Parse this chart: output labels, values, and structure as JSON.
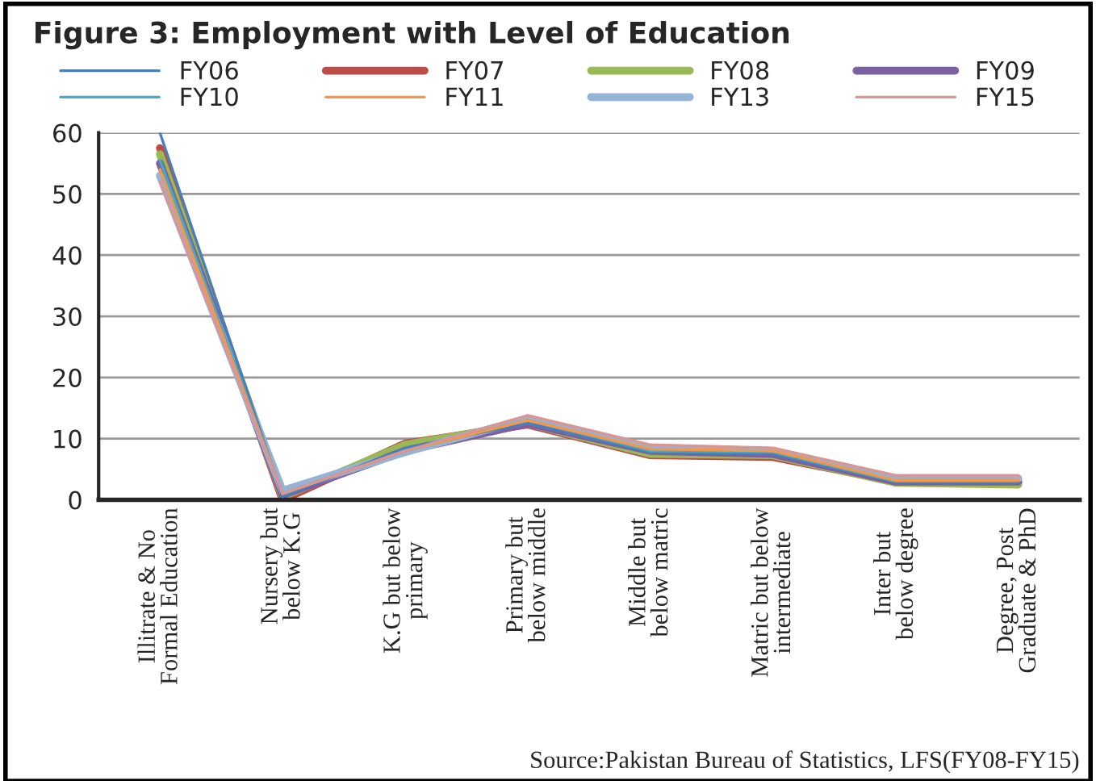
{
  "chart_data": {
    "type": "line",
    "title": "Figure 3: Employment with Level of Education",
    "categories": [
      "Illitrate & No Formal Education",
      "Nursery but below K.G",
      "K.G but below primary",
      "Primary but below middle",
      "Middle but below matric",
      "Matric but below intermediate",
      "Inter but below degree",
      "Degree, Post Graduate & PhD"
    ],
    "series": [
      {
        "name": "FY06",
        "color": "#4a7ebb",
        "values": [
          60,
          0.5,
          8.5,
          12.5,
          7.8,
          7.5,
          3,
          3
        ]
      },
      {
        "name": "FY07",
        "color": "#be4b48",
        "values": [
          57.5,
          0,
          9.2,
          12.3,
          7.3,
          7,
          3,
          2.8
        ]
      },
      {
        "name": "FY08",
        "color": "#98b954",
        "values": [
          56.5,
          0.5,
          9,
          12.5,
          7.5,
          7.3,
          2.8,
          2.5
        ]
      },
      {
        "name": "FY09",
        "color": "#7d60a0",
        "values": [
          55,
          0.8,
          8,
          12.5,
          8,
          7.5,
          3,
          3
        ]
      },
      {
        "name": "FY10",
        "color": "#46aac5",
        "values": [
          55.5,
          1,
          8,
          13,
          8,
          7.8,
          3,
          3
        ]
      },
      {
        "name": "FY11",
        "color": "#f79646",
        "values": [
          54,
          1,
          8,
          13,
          8.3,
          8,
          3.2,
          3.2
        ]
      },
      {
        "name": "FY13",
        "color": "#95b3d7",
        "values": [
          53,
          1.5,
          7.8,
          13.3,
          8.5,
          8,
          3.5,
          3.5
        ]
      },
      {
        "name": "FY15",
        "color": "#d99694",
        "values": [
          52,
          1,
          8,
          13.8,
          9,
          8.5,
          4,
          4
        ]
      }
    ],
    "ylim": [
      0,
      60
    ],
    "yticks": [
      0,
      10,
      20,
      30,
      40,
      50,
      60
    ],
    "grid": "y",
    "legend": "top",
    "annotations": [
      "Source:Pakistan Bureau of Statistics, LFS(FY08-FY15)"
    ]
  }
}
